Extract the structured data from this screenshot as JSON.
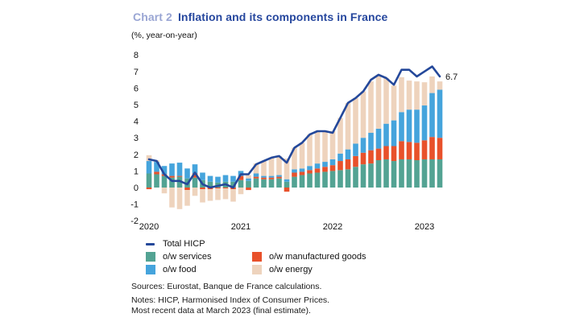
{
  "header": {
    "label": "Chart 2",
    "title": "Inflation and its components in France",
    "subtitle": "(%, year-on-year)",
    "label_color": "#9aa6d4",
    "title_color": "#26479e"
  },
  "annotation": {
    "label": "6.7",
    "value": 6.7
  },
  "legend": {
    "total": {
      "label": "Total HICP",
      "color": "#24489a"
    },
    "items": [
      {
        "label": "o/w services",
        "color": "#53a393"
      },
      {
        "label": "o/w food",
        "color": "#45a4dc"
      },
      {
        "label": "o/w manufactured goods",
        "color": "#e8512b"
      },
      {
        "label": "o/w energy",
        "color": "#eed3bd"
      }
    ]
  },
  "footer": {
    "sources": "Sources: Eurostat, Banque de France calculations.",
    "notes": "Notes: HICP, Harmonised Index of Consumer Prices.",
    "notes2": "Most recent data at March 2023 (final estimate)."
  },
  "chart_data": {
    "type": "bar",
    "subtype": "stacked-bar-with-line-overlay",
    "title": "Inflation and its components in France",
    "ylabel": "(%, year-on-year)",
    "ylim": [
      -2,
      8
    ],
    "yticks": [
      8,
      7,
      6,
      5,
      4,
      3,
      2,
      1,
      0,
      -1,
      -2
    ],
    "grid": false,
    "legend_position": "bottom-left",
    "x": [
      "2020-01",
      "2020-02",
      "2020-03",
      "2020-04",
      "2020-05",
      "2020-06",
      "2020-07",
      "2020-08",
      "2020-09",
      "2020-10",
      "2020-11",
      "2020-12",
      "2021-01",
      "2021-02",
      "2021-03",
      "2021-04",
      "2021-05",
      "2021-06",
      "2021-07",
      "2021-08",
      "2021-09",
      "2021-10",
      "2021-11",
      "2021-12",
      "2022-01",
      "2022-02",
      "2022-03",
      "2022-04",
      "2022-05",
      "2022-06",
      "2022-07",
      "2022-08",
      "2022-09",
      "2022-10",
      "2022-11",
      "2022-12",
      "2023-01",
      "2023-02",
      "2023-03"
    ],
    "xticks": [
      {
        "label": "2020",
        "index": 0
      },
      {
        "label": "2021",
        "index": 12
      },
      {
        "label": "2022",
        "index": 24
      },
      {
        "label": "2023",
        "index": 36
      }
    ],
    "series": [
      {
        "name": "o/w services",
        "color": "#53a393",
        "values": [
          0.85,
          0.8,
          0.7,
          0.6,
          0.65,
          0.55,
          0.6,
          0.45,
          0.35,
          0.3,
          0.35,
          0.35,
          0.45,
          0.4,
          0.55,
          0.5,
          0.5,
          0.55,
          0.35,
          0.65,
          0.75,
          0.85,
          0.9,
          0.95,
          1.0,
          1.05,
          1.1,
          1.25,
          1.4,
          1.45,
          1.65,
          1.7,
          1.6,
          1.7,
          1.7,
          1.65,
          1.7,
          1.7,
          1.7
        ]
      },
      {
        "name": "o/w manufactured goods",
        "color": "#e8512b",
        "values": [
          -0.1,
          0.15,
          0.1,
          0.1,
          0.05,
          -0.15,
          0.25,
          -0.1,
          -0.1,
          -0.05,
          -0.05,
          -0.1,
          0.25,
          -0.15,
          0.1,
          0.1,
          0.1,
          0.1,
          -0.25,
          0.25,
          0.2,
          0.2,
          0.25,
          0.3,
          0.35,
          0.55,
          0.6,
          0.65,
          0.7,
          0.8,
          0.7,
          0.8,
          0.9,
          1.1,
          1.05,
          1.05,
          1.15,
          1.35,
          1.3
        ]
      },
      {
        "name": "o/w food",
        "color": "#45a4dc",
        "values": [
          0.75,
          0.6,
          0.5,
          0.75,
          0.8,
          0.6,
          0.55,
          0.45,
          0.35,
          0.35,
          0.4,
          0.35,
          0.3,
          0.15,
          0.2,
          0.1,
          0.1,
          0.1,
          0.15,
          0.2,
          0.2,
          0.25,
          0.3,
          0.3,
          0.35,
          0.45,
          0.6,
          0.75,
          0.9,
          1.05,
          1.2,
          1.35,
          1.55,
          1.75,
          1.95,
          2.0,
          2.1,
          2.65,
          2.9
        ]
      },
      {
        "name": "o/w energy",
        "color": "#eed3bd",
        "values": [
          0.35,
          0.1,
          -0.35,
          -1.2,
          -1.3,
          -0.95,
          -0.5,
          -0.8,
          -0.7,
          -0.7,
          -0.65,
          -0.75,
          -0.4,
          0.2,
          0.6,
          0.9,
          1.1,
          1.15,
          1.25,
          1.3,
          1.55,
          1.9,
          1.95,
          1.85,
          1.7,
          2.15,
          2.8,
          2.75,
          2.8,
          3.1,
          3.2,
          2.75,
          2.1,
          2.1,
          1.75,
          1.7,
          1.4,
          1.0,
          0.5
        ]
      }
    ],
    "line": {
      "name": "Total HICP",
      "color": "#24489a",
      "values": [
        1.7,
        1.6,
        0.8,
        0.4,
        0.4,
        0.2,
        0.9,
        0.2,
        0.0,
        0.1,
        0.2,
        0.0,
        0.8,
        0.8,
        1.4,
        1.6,
        1.8,
        1.9,
        1.5,
        2.4,
        2.7,
        3.2,
        3.4,
        3.4,
        3.3,
        4.2,
        5.1,
        5.4,
        5.8,
        6.5,
        6.8,
        6.6,
        6.2,
        7.1,
        7.1,
        6.7,
        7.0,
        7.3,
        6.7
      ]
    }
  }
}
